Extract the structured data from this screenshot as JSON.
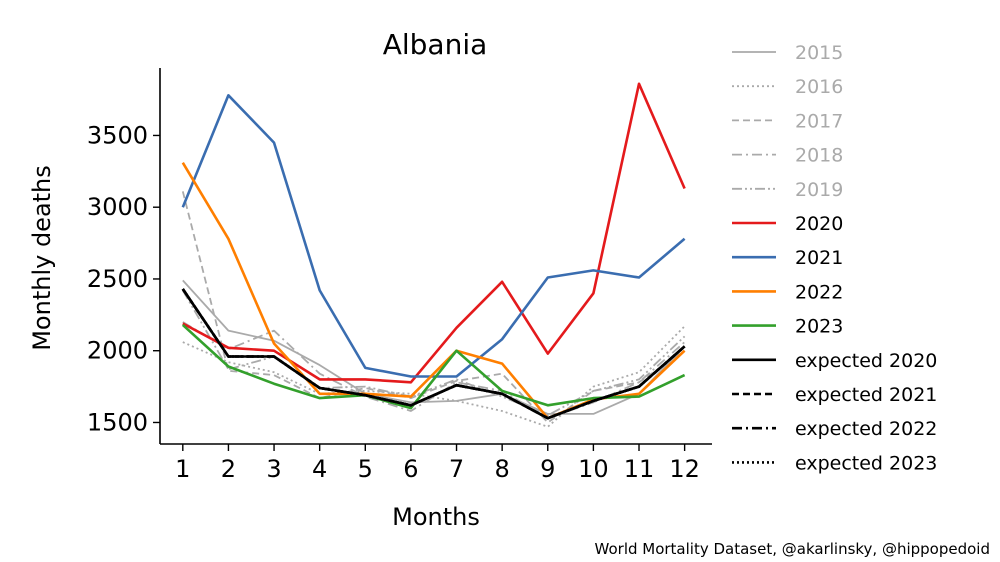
{
  "chart_data": {
    "type": "line",
    "title": "Albania",
    "xlabel": "Months",
    "ylabel": "Monthly deaths",
    "x": [
      1,
      2,
      3,
      4,
      5,
      6,
      7,
      8,
      9,
      10,
      11,
      12
    ],
    "xlim": [
      0.5,
      12.6
    ],
    "ylim": [
      1350,
      3970
    ],
    "yticks": [
      1500,
      2000,
      2500,
      3000,
      3500
    ],
    "grid": false,
    "legend_position": "right",
    "series": [
      {
        "name": "2015",
        "color": "#aaaaaa",
        "dash": "solid",
        "values": [
          2490,
          2140,
          2070,
          1900,
          1700,
          1640,
          1650,
          1700,
          1560,
          1560,
          1700,
          2030
        ]
      },
      {
        "name": "2016",
        "color": "#aaaaaa",
        "dash": "dotted",
        "values": [
          2060,
          1920,
          1850,
          1700,
          1720,
          1700,
          1650,
          1580,
          1470,
          1750,
          1850,
          2170
        ]
      },
      {
        "name": "2017",
        "color": "#aaaaaa",
        "dash": "dashed",
        "values": [
          3110,
          1860,
          1830,
          1670,
          1740,
          1670,
          1790,
          1840,
          1500,
          1720,
          1780,
          2000
        ]
      },
      {
        "name": "2018",
        "color": "#aaaaaa",
        "dash": "dashdot",
        "values": [
          2200,
          2010,
          2140,
          1840,
          1680,
          1580,
          1780,
          1720,
          1530,
          1640,
          1780,
          2060
        ]
      },
      {
        "name": "2019",
        "color": "#aaaaaa",
        "dash": "dashdotdot",
        "values": [
          2420,
          1870,
          1960,
          1740,
          1750,
          1680,
          1800,
          1680,
          1550,
          1720,
          1800,
          2100
        ]
      },
      {
        "name": "2020",
        "color": "#e41a1c",
        "dash": "solid",
        "values": [
          2190,
          2020,
          2000,
          1800,
          1800,
          1780,
          2160,
          2480,
          1980,
          2400,
          3860,
          3130
        ]
      },
      {
        "name": "2021",
        "color": "#3a6db0",
        "dash": "solid",
        "values": [
          3000,
          3780,
          3450,
          2420,
          1880,
          1820,
          1820,
          2080,
          2510,
          2560,
          2510,
          2780
        ]
      },
      {
        "name": "2022",
        "color": "#ff7f00",
        "dash": "solid",
        "values": [
          3310,
          2780,
          2050,
          1700,
          1700,
          1680,
          2000,
          1910,
          1530,
          1660,
          1700,
          2000
        ]
      },
      {
        "name": "2023",
        "color": "#33a02c",
        "dash": "solid",
        "values": [
          2180,
          1890,
          1770,
          1670,
          1690,
          1600,
          2000,
          1720,
          1620,
          1670,
          1680,
          1830
        ]
      },
      {
        "name": "expected 2020",
        "color": "#000000",
        "dash": "solid",
        "values": [
          2430,
          1960,
          1960,
          1740,
          1690,
          1620,
          1760,
          1700,
          1530,
          1650,
          1750,
          2030
        ]
      },
      {
        "name": "expected 2021",
        "color": "#000000",
        "dash": "dashed",
        "values": [
          2430,
          1960,
          1960,
          1740,
          1690,
          1620,
          1760,
          1700,
          1530,
          1650,
          1750,
          2030
        ]
      },
      {
        "name": "expected 2022",
        "color": "#000000",
        "dash": "dashdot",
        "values": [
          2430,
          1960,
          1960,
          1740,
          1690,
          1620,
          1760,
          1700,
          1530,
          1650,
          1750,
          2030
        ]
      },
      {
        "name": "expected 2023",
        "color": "#000000",
        "dash": "dotted",
        "values": [
          2430,
          1960,
          1960,
          1740,
          1690,
          1620,
          1760,
          1700,
          1530,
          1650,
          1750,
          2030
        ]
      }
    ]
  },
  "credit": "World Mortality Dataset, @akarlinsky, @hippopedoid"
}
